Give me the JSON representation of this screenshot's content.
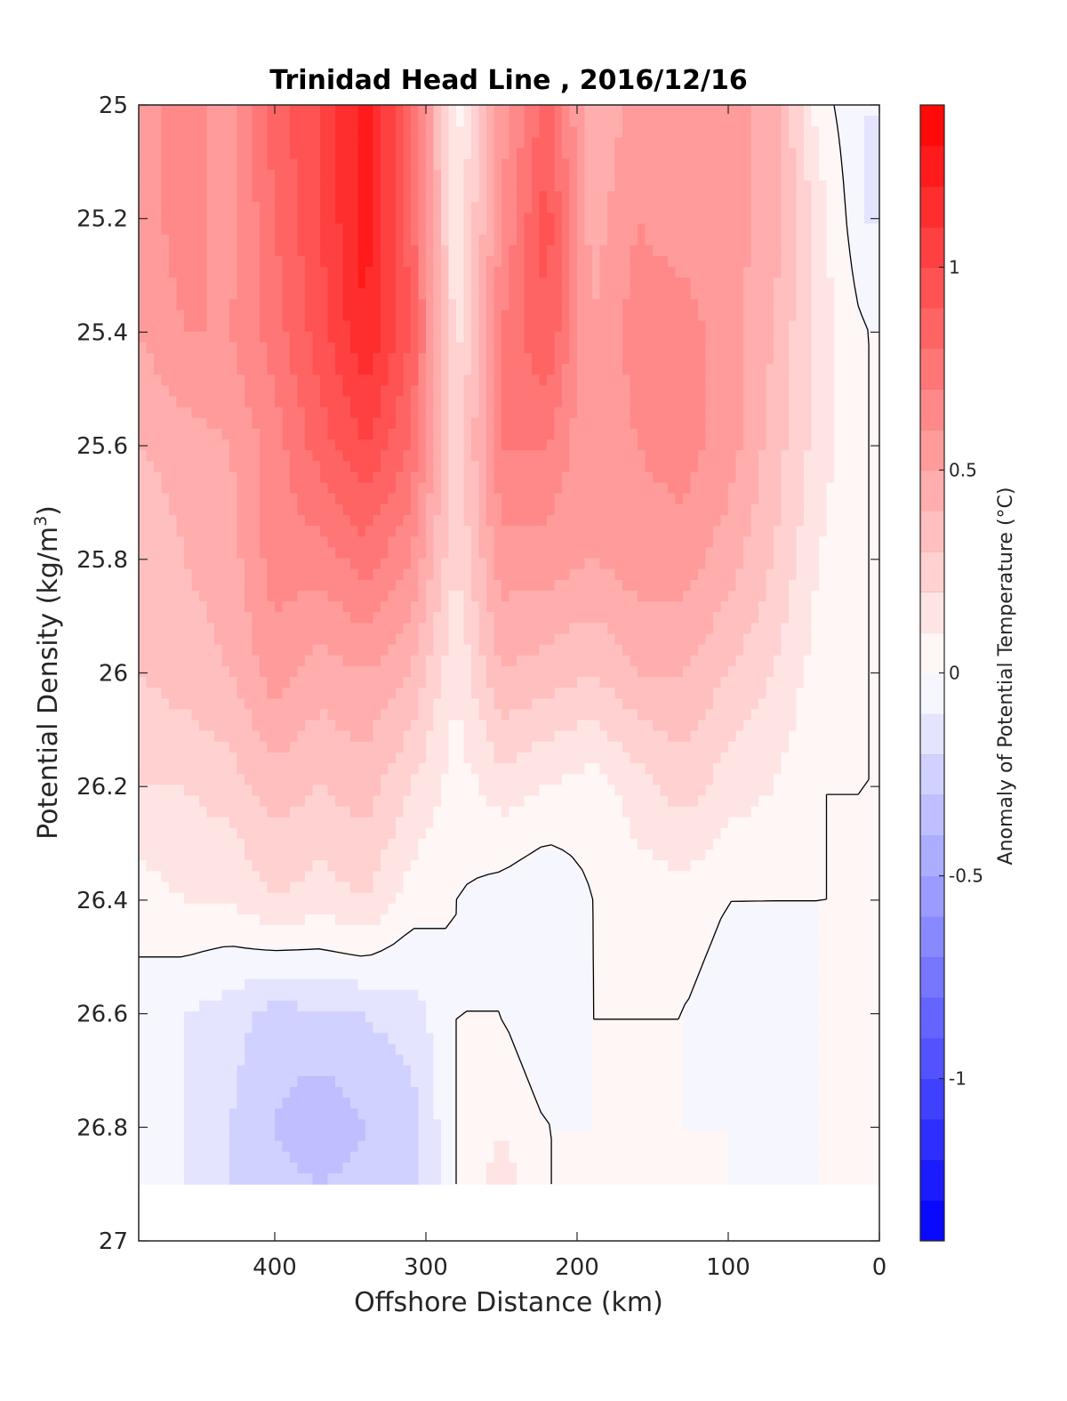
{
  "chart_data": {
    "type": "heatmap",
    "title": "Trinidad Head Line , 2016/12/16",
    "xlabel": "Offshore Distance (km)",
    "ylabel": "Potential Density (kg/m",
    "ylabel_superscript": "3",
    "ylabel_close": ")",
    "colorbar_label": "Anomaly of Potential Temperature (°C)",
    "xlim": [
      490,
      0
    ],
    "x_reversed": true,
    "ylim": [
      25,
      27
    ],
    "y_reversed": true,
    "xticks": [
      400,
      300,
      200,
      100,
      0
    ],
    "yticks": [
      25,
      25.2,
      25.4,
      25.6,
      25.8,
      26,
      26.2,
      26.4,
      26.6,
      26.8,
      27
    ],
    "colorbar_range": [
      -1.4,
      1.4
    ],
    "colorbar_step": 0.1,
    "colorbar_ticks": [
      -1,
      -0.5,
      0,
      0.5,
      1
    ],
    "colormap": {
      "cold": "#0000ff",
      "neutral": "#ffffff",
      "warm": "#ff0000"
    },
    "grid": false,
    "data_bottom_density": 26.9,
    "distance_km": [
      490,
      460,
      430,
      400,
      370,
      340,
      310,
      280,
      250,
      220,
      190,
      160,
      130,
      100,
      70,
      40,
      10
    ],
    "density": [
      25.0,
      25.2,
      25.4,
      25.6,
      25.8,
      26.0,
      26.2,
      26.4,
      26.6,
      26.8,
      26.9
    ],
    "anomaly": [
      [
        0.55,
        0.65,
        0.55,
        0.85,
        1.0,
        1.25,
        0.85,
        0.05,
        0.55,
        0.85,
        0.4,
        0.55,
        0.5,
        0.55,
        0.45,
        0.05,
        -0.1
      ],
      [
        0.55,
        0.65,
        0.55,
        0.8,
        1.0,
        1.25,
        0.85,
        0.1,
        0.6,
        0.95,
        0.45,
        0.6,
        0.55,
        0.55,
        0.45,
        0.15,
        -0.1
      ],
      [
        0.5,
        0.6,
        0.6,
        0.75,
        0.95,
        1.2,
        0.9,
        0.15,
        0.7,
        0.9,
        0.5,
        0.65,
        0.65,
        0.55,
        0.4,
        0.15,
        0.0
      ],
      [
        0.4,
        0.45,
        0.5,
        0.65,
        0.85,
        1.0,
        0.8,
        0.2,
        0.7,
        0.7,
        0.5,
        0.6,
        0.65,
        0.55,
        0.35,
        0.15,
        0.0
      ],
      [
        0.3,
        0.4,
        0.45,
        0.65,
        0.65,
        0.75,
        0.6,
        0.2,
        0.55,
        0.55,
        0.5,
        0.55,
        0.55,
        0.45,
        0.3,
        0.1,
        0.0
      ],
      [
        0.3,
        0.35,
        0.4,
        0.55,
        0.45,
        0.5,
        0.4,
        0.1,
        0.4,
        0.35,
        0.3,
        0.4,
        0.4,
        0.3,
        0.2,
        0.05,
        0.0
      ],
      [
        0.2,
        0.2,
        0.25,
        0.35,
        0.3,
        0.35,
        0.2,
        0.05,
        0.15,
        0.1,
        0.05,
        0.15,
        0.25,
        0.15,
        0.1,
        0.0,
        0.0
      ],
      [
        0.05,
        0.1,
        0.1,
        0.2,
        0.15,
        0.2,
        0.05,
        0.0,
        -0.05,
        -0.1,
        0.0,
        0.05,
        0.05,
        0.0,
        0.0,
        0.0,
        0.0
      ],
      [
        -0.05,
        -0.1,
        -0.15,
        -0.25,
        -0.2,
        -0.2,
        -0.15,
        0.0,
        0.0,
        -0.1,
        0.0,
        0.0,
        0.0,
        -0.05,
        -0.05,
        0.0,
        0.0
      ],
      [
        0.0,
        -0.1,
        -0.2,
        -0.3,
        -0.4,
        -0.3,
        -0.25,
        0.0,
        0.1,
        0.0,
        0.0,
        0.0,
        0.0,
        0.0,
        -0.1,
        0.0,
        0.0
      ],
      [
        0.0,
        -0.1,
        -0.2,
        -0.25,
        -0.3,
        -0.25,
        -0.25,
        0.0,
        0.15,
        0.0,
        0.0,
        0.0,
        0.0,
        0.0,
        -0.1,
        0.0,
        0.0
      ]
    ]
  }
}
